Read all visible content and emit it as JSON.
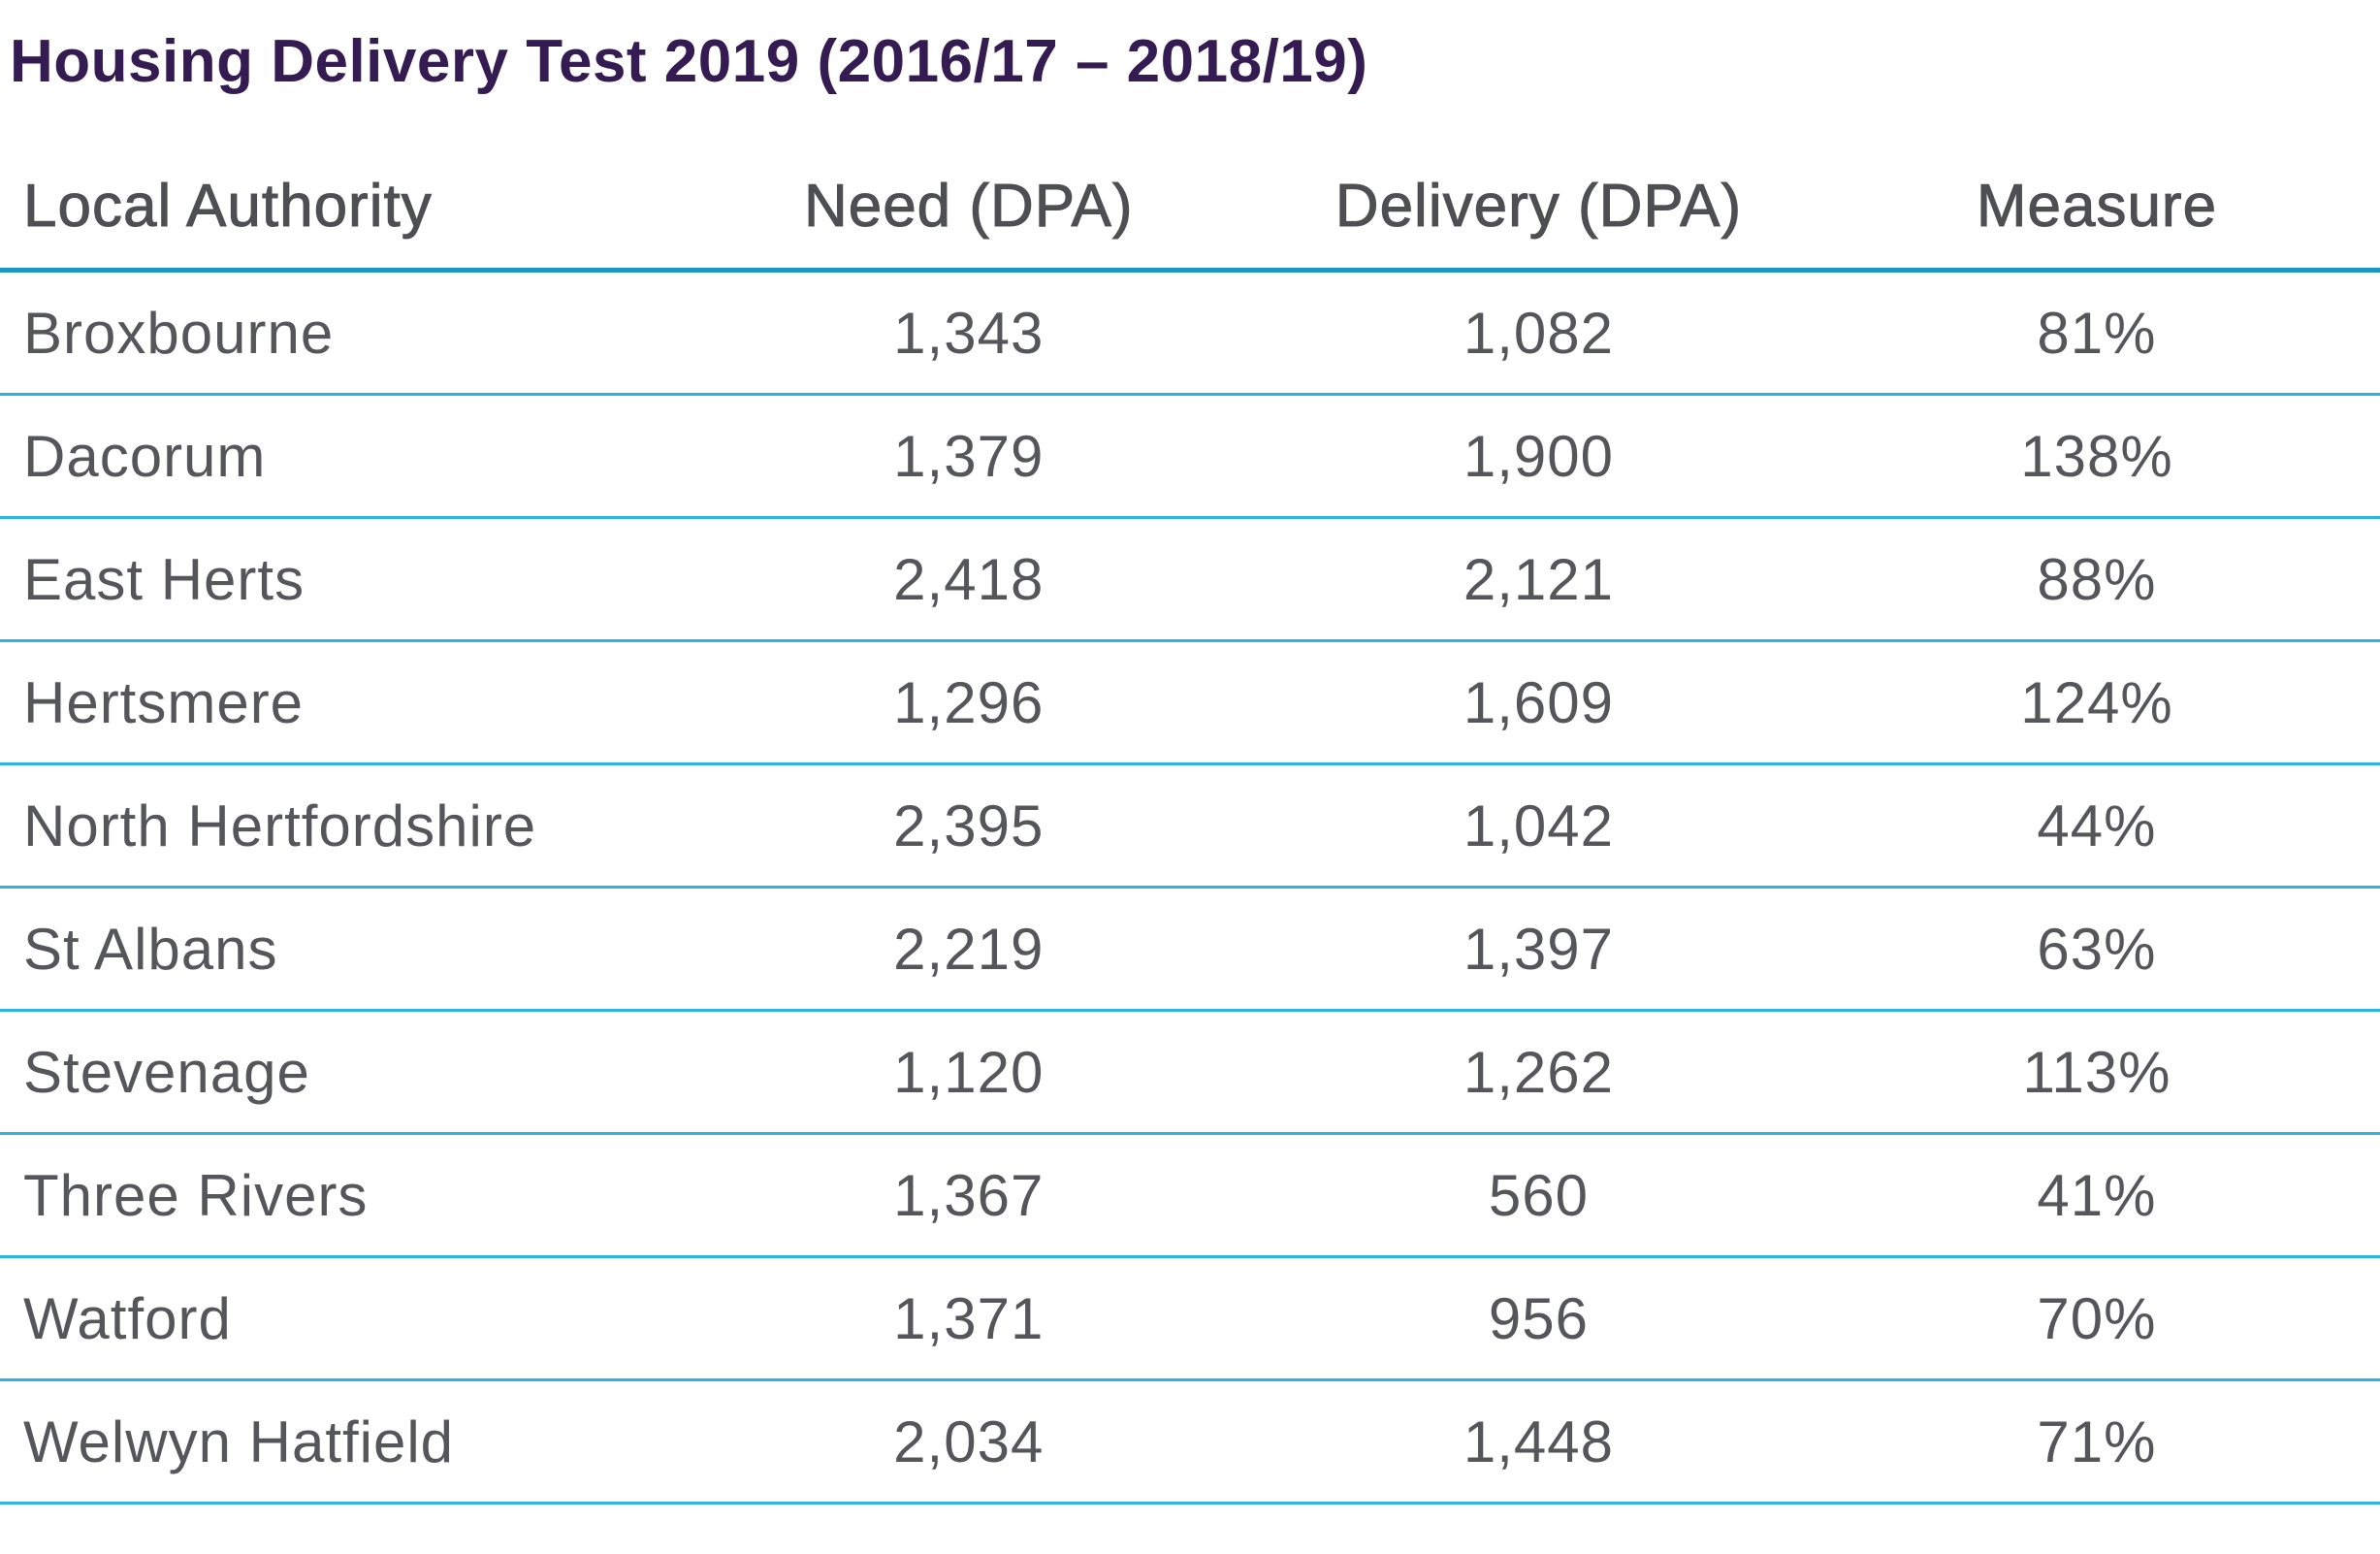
{
  "title": "Housing Delivery Test 2019 (2016/17 – 2018/19)",
  "table": {
    "columns": [
      "Local Authority",
      "Need (DPA)",
      "Delivery (DPA)",
      "Measure"
    ],
    "rows": [
      {
        "authority": "Broxbourne",
        "need": "1,343",
        "delivery": "1,082",
        "measure": "81%"
      },
      {
        "authority": "Dacorum",
        "need": "1,379",
        "delivery": "1,900",
        "measure": "138%"
      },
      {
        "authority": "East Herts",
        "need": "2,418",
        "delivery": "2,121",
        "measure": "88%"
      },
      {
        "authority": "Hertsmere",
        "need": "1,296",
        "delivery": "1,609",
        "measure": "124%"
      },
      {
        "authority": "North Hertfordshire",
        "need": "2,395",
        "delivery": "1,042",
        "measure": "44%"
      },
      {
        "authority": "St Albans",
        "need": "2,219",
        "delivery": "1,397",
        "measure": "63%"
      },
      {
        "authority": "Stevenage",
        "need": "1,120",
        "delivery": "1,262",
        "measure": "113%"
      },
      {
        "authority": "Three Rivers",
        "need": "1,367",
        "delivery": "560",
        "measure": "41%"
      },
      {
        "authority": "Watford",
        "need": "1,371",
        "delivery": "956",
        "measure": "70%"
      },
      {
        "authority": "Welwyn Hatfield",
        "need": "2,034",
        "delivery": "1,448",
        "measure": "71%"
      }
    ]
  },
  "colors": {
    "title_color": "#341c52",
    "header_text": "#4e4f52",
    "cell_text": "#55565a",
    "header_divider": "#1e95c8",
    "row_divider": "#2ab4e4",
    "background": "#ffffff"
  },
  "chart_data": {
    "type": "table",
    "title": "Housing Delivery Test 2019 (2016/17 – 2018/19)",
    "columns": [
      "Local Authority",
      "Need (DPA)",
      "Delivery (DPA)",
      "Measure"
    ],
    "rows": [
      [
        "Broxbourne",
        1343,
        1082,
        "81%"
      ],
      [
        "Dacorum",
        1379,
        1900,
        "138%"
      ],
      [
        "East Herts",
        2418,
        2121,
        "88%"
      ],
      [
        "Hertsmere",
        1296,
        1609,
        "124%"
      ],
      [
        "North Hertfordshire",
        2395,
        1042,
        "44%"
      ],
      [
        "St Albans",
        2219,
        1397,
        "63%"
      ],
      [
        "Stevenage",
        1120,
        1262,
        "113%"
      ],
      [
        "Three Rivers",
        1367,
        560,
        "41%"
      ],
      [
        "Watford",
        1371,
        956,
        "70%"
      ],
      [
        "Welwyn Hatfield",
        2034,
        1448,
        "71%"
      ]
    ],
    "notes": {
      "row_alignment": "first column left-aligned, numeric columns centered",
      "grid": "horizontal cyan rules only, thicker rule under header"
    }
  }
}
